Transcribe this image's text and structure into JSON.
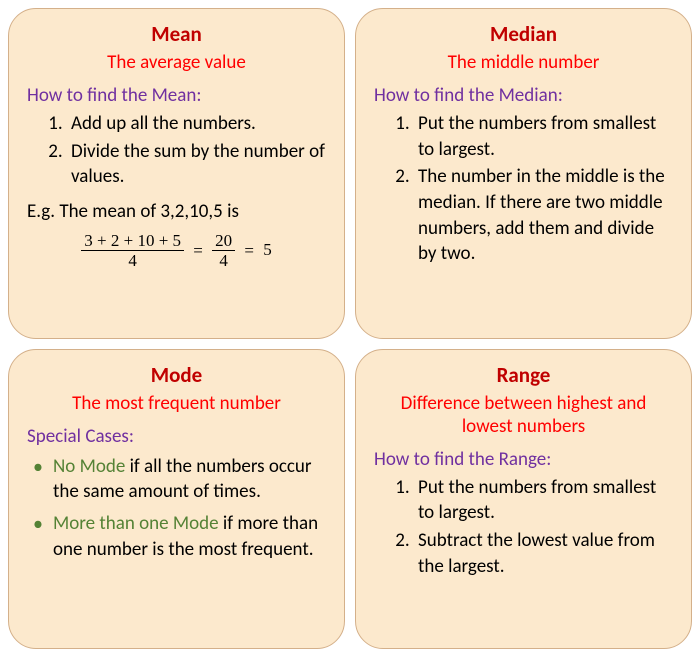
{
  "colors": {
    "card_bg": "#fce9cd",
    "card_border": "#d4b08a",
    "title_color": "#c00000",
    "subtitle_color": "#ff0000",
    "howto_color": "#7030a0",
    "body_color": "#000000",
    "accent_green": "#548235"
  },
  "mean": {
    "title": "Mean",
    "subtitle": "The average value",
    "howto": "How to find the Mean:",
    "step1": "Add up all the numbers.",
    "step2": "Divide the sum by the number of values.",
    "eg": "E.g. The mean of 3,2,10,5 is",
    "frac1_num": "3 + 2 + 10 + 5",
    "frac1_den": "4",
    "frac2_num": "20",
    "frac2_den": "4",
    "result": "5"
  },
  "median": {
    "title": "Median",
    "subtitle": "The middle number",
    "howto": "How to find the Median:",
    "step1": "Put the numbers from smallest to largest.",
    "step2": "The number in the middle is the median. If there are two middle numbers, add them and divide by two."
  },
  "mode": {
    "title": "Mode",
    "subtitle": "The most frequent number",
    "special": "Special Cases:",
    "case1_green": "No Mode",
    "case1_rest": " if all the numbers occur the same amount of times.",
    "case2_green": "More than one Mode",
    "case2_rest": " if more than one number is the most frequent."
  },
  "range": {
    "title": "Range",
    "subtitle": "Difference between highest and lowest numbers",
    "howto": "How to find the Range:",
    "step1": "Put the numbers from smallest to largest.",
    "step2": "Subtract the lowest value from the largest."
  }
}
